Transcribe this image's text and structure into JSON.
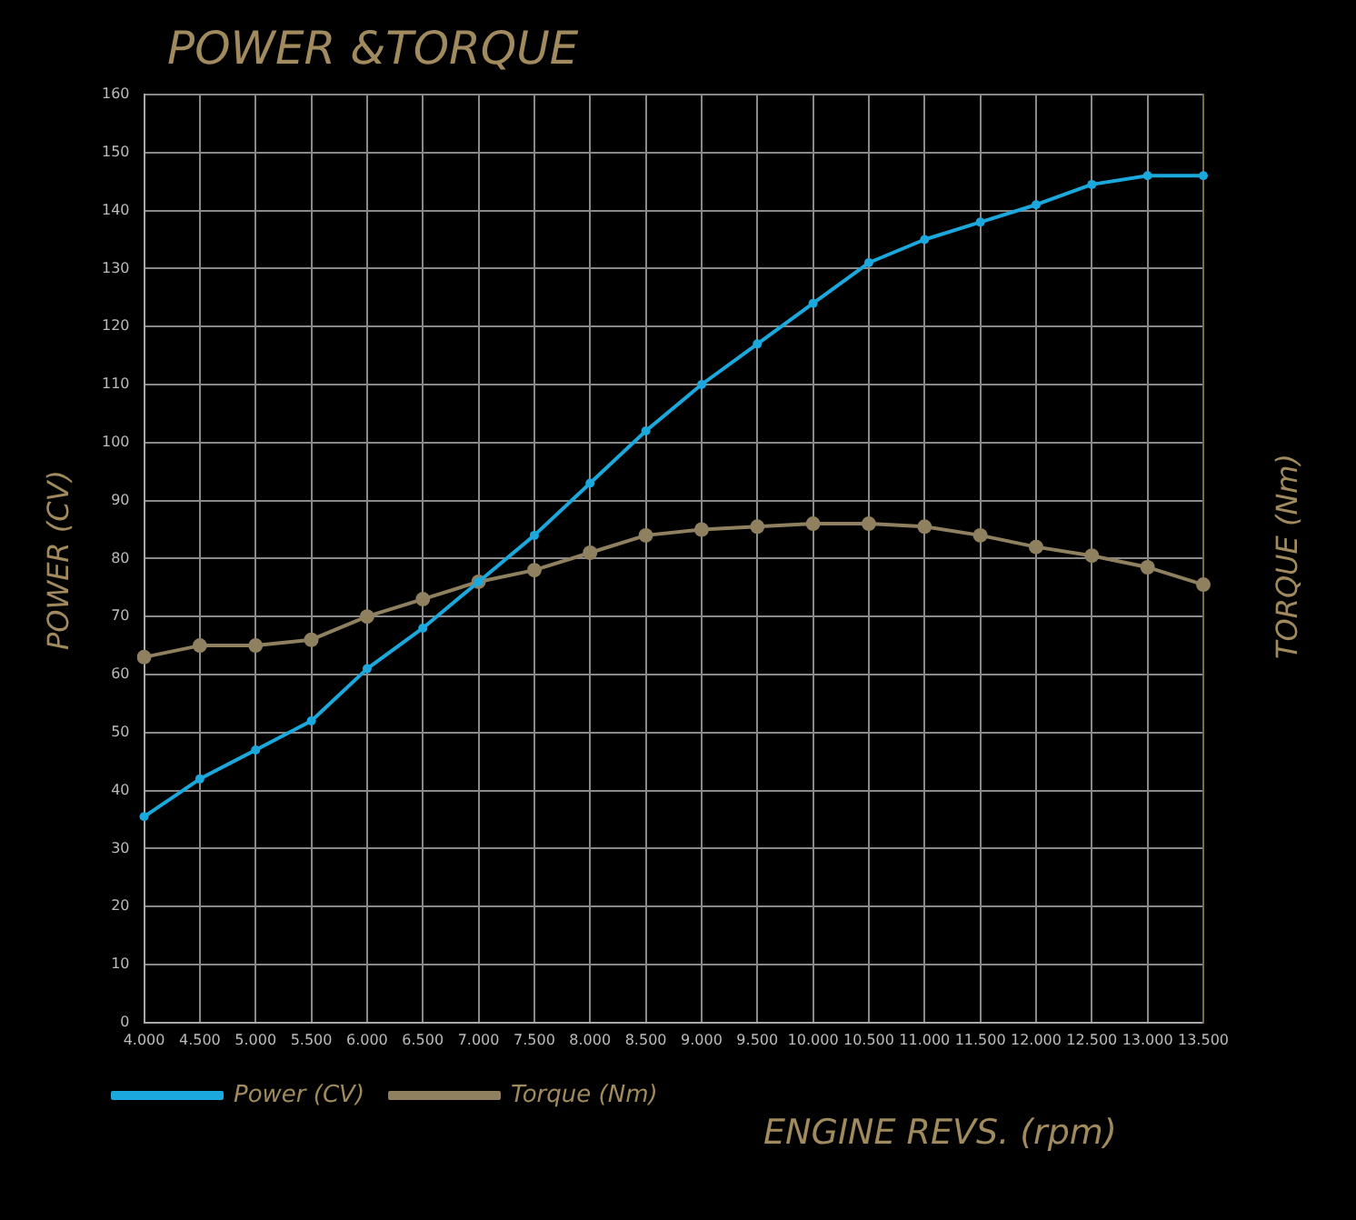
{
  "chart_data": {
    "type": "line",
    "title": "POWER &TORQUE",
    "xlabel": "ENGINE REVS. (rpm)",
    "ylabel": "POWER (CV)",
    "y2label": "TORQUE (Nm)",
    "categories": [
      "4.000",
      "4.500",
      "5.000",
      "5.500",
      "6.000",
      "6.500",
      "7.000",
      "7.500",
      "8.000",
      "8.500",
      "9.000",
      "9.500",
      "10.000",
      "10.500",
      "11.000",
      "11.500",
      "12.000",
      "12.500",
      "13.000",
      "13.500"
    ],
    "series": [
      {
        "name": "Power (CV)",
        "color": "#1ba8dc",
        "values": [
          35.5,
          42,
          47,
          52,
          61,
          68,
          76,
          84,
          93,
          102,
          110,
          117,
          124,
          131,
          135,
          138,
          141,
          144.5,
          146,
          146
        ]
      },
      {
        "name": "Torque (Nm)",
        "color": "#8f8160",
        "values": [
          63,
          65,
          65,
          66,
          70,
          73,
          76,
          78,
          81,
          84,
          85,
          85.5,
          86,
          86,
          85.5,
          84,
          82,
          80.5,
          78.5,
          75.5
        ]
      }
    ],
    "ylim": [
      0,
      160
    ],
    "yticks": [
      0,
      10,
      20,
      30,
      40,
      50,
      60,
      70,
      80,
      90,
      100,
      110,
      120,
      130,
      140,
      150,
      160
    ],
    "grid": true,
    "legend": "bottom left",
    "marker": "circle",
    "line_style": "solid"
  }
}
